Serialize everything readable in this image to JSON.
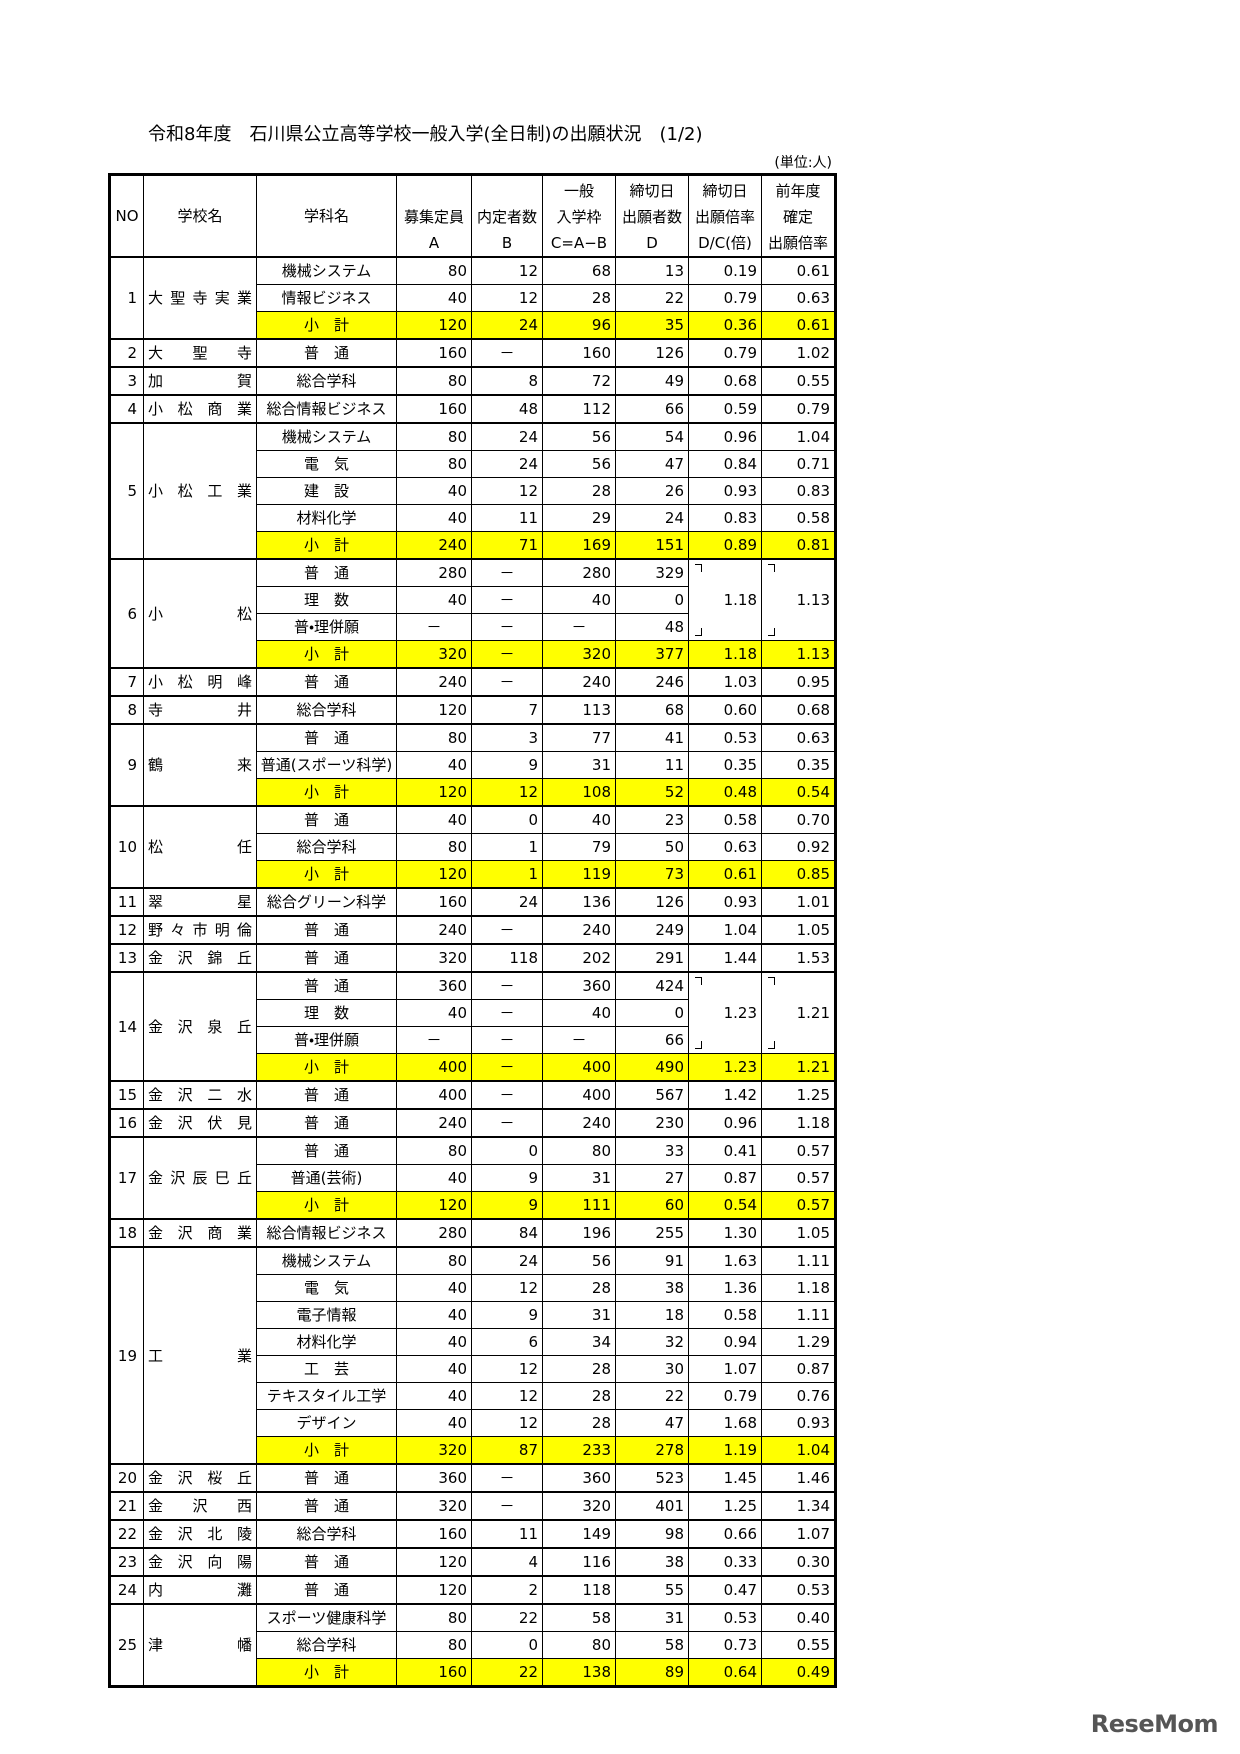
{
  "title": "令和8年度　石川県公立高等学校一般入学(全日制)の出願状況　(1/2)",
  "unit": "(単位:人)",
  "header": [
    [
      "NO"
    ],
    [
      "学校名"
    ],
    [
      "学科名"
    ],
    [
      "募集定員",
      "A"
    ],
    [
      "内定者数",
      "B"
    ],
    [
      "一般",
      "入学枠",
      "C=A−B"
    ],
    [
      "締切日",
      "出願者数",
      "D"
    ],
    [
      "締切日",
      "出願倍率",
      "D/C(倍)"
    ],
    [
      "前年度",
      "確定",
      "出願倍率"
    ]
  ],
  "schools": [
    {
      "no": "1",
      "name": "大聖寺実業",
      "rows": [
        [
          "機械システム",
          "80",
          "12",
          "68",
          "13",
          "0.19",
          "0.61"
        ],
        [
          "情報ビジネス",
          "40",
          "12",
          "28",
          "22",
          "0.79",
          "0.63"
        ]
      ],
      "subtotal": [
        "小　計",
        "120",
        "24",
        "96",
        "35",
        "0.36",
        "0.61"
      ]
    },
    {
      "no": "2",
      "name": "大聖寺",
      "rows": [
        [
          "普　通",
          "160",
          "－",
          "160",
          "126",
          "0.79",
          "1.02"
        ]
      ]
    },
    {
      "no": "3",
      "name": "加賀",
      "rows": [
        [
          "総合学科",
          "80",
          "8",
          "72",
          "49",
          "0.68",
          "0.55"
        ]
      ]
    },
    {
      "no": "4",
      "name": "小松商業",
      "rows": [
        [
          "総合情報ビジネス",
          "160",
          "48",
          "112",
          "66",
          "0.59",
          "0.79"
        ]
      ]
    },
    {
      "no": "5",
      "name": "小松工業",
      "rows": [
        [
          "機械システム",
          "80",
          "24",
          "56",
          "54",
          "0.96",
          "1.04"
        ],
        [
          "電　気",
          "80",
          "24",
          "56",
          "47",
          "0.84",
          "0.71"
        ],
        [
          "建　設",
          "40",
          "12",
          "28",
          "26",
          "0.93",
          "0.83"
        ],
        [
          "材料化学",
          "40",
          "11",
          "29",
          "24",
          "0.83",
          "0.58"
        ]
      ],
      "subtotal": [
        "小　計",
        "240",
        "71",
        "169",
        "151",
        "0.89",
        "0.81"
      ]
    },
    {
      "no": "6",
      "name": "小松",
      "rows": [
        [
          "普　通",
          "280",
          "－",
          "280",
          "329"
        ],
        [
          "理　数",
          "40",
          "－",
          "40",
          "0"
        ],
        [
          "普・理併願",
          "－",
          "－",
          "－",
          "48"
        ]
      ],
      "combined": [
        "1.18",
        "1.13"
      ],
      "subtotal": [
        "小　計",
        "320",
        "－",
        "320",
        "377",
        "1.18",
        "1.13"
      ]
    },
    {
      "no": "7",
      "name": "小松明峰",
      "rows": [
        [
          "普　通",
          "240",
          "－",
          "240",
          "246",
          "1.03",
          "0.95"
        ]
      ]
    },
    {
      "no": "8",
      "name": "寺井",
      "rows": [
        [
          "総合学科",
          "120",
          "7",
          "113",
          "68",
          "0.60",
          "0.68"
        ]
      ]
    },
    {
      "no": "9",
      "name": "鶴来",
      "rows": [
        [
          "普　通",
          "80",
          "3",
          "77",
          "41",
          "0.53",
          "0.63"
        ],
        [
          "普通(スポーツ科学)",
          "40",
          "9",
          "31",
          "11",
          "0.35",
          "0.35"
        ]
      ],
      "subtotal": [
        "小　計",
        "120",
        "12",
        "108",
        "52",
        "0.48",
        "0.54"
      ]
    },
    {
      "no": "10",
      "name": "松任",
      "rows": [
        [
          "普　通",
          "40",
          "0",
          "40",
          "23",
          "0.58",
          "0.70"
        ],
        [
          "総合学科",
          "80",
          "1",
          "79",
          "50",
          "0.63",
          "0.92"
        ]
      ],
      "subtotal": [
        "小　計",
        "120",
        "1",
        "119",
        "73",
        "0.61",
        "0.85"
      ]
    },
    {
      "no": "11",
      "name": "翠星",
      "rows": [
        [
          "総合グリーン科学",
          "160",
          "24",
          "136",
          "126",
          "0.93",
          "1.01"
        ]
      ]
    },
    {
      "no": "12",
      "name": "野々市明倫",
      "rows": [
        [
          "普　通",
          "240",
          "－",
          "240",
          "249",
          "1.04",
          "1.05"
        ]
      ]
    },
    {
      "no": "13",
      "name": "金沢錦丘",
      "rows": [
        [
          "普　通",
          "320",
          "118",
          "202",
          "291",
          "1.44",
          "1.53"
        ]
      ]
    },
    {
      "no": "14",
      "name": "金沢泉丘",
      "rows": [
        [
          "普　通",
          "360",
          "－",
          "360",
          "424"
        ],
        [
          "理　数",
          "40",
          "－",
          "40",
          "0"
        ],
        [
          "普・理併願",
          "－",
          "－",
          "－",
          "66"
        ]
      ],
      "combined": [
        "1.23",
        "1.21"
      ],
      "subtotal": [
        "小　計",
        "400",
        "－",
        "400",
        "490",
        "1.23",
        "1.21"
      ]
    },
    {
      "no": "15",
      "name": "金沢二水",
      "rows": [
        [
          "普　通",
          "400",
          "－",
          "400",
          "567",
          "1.42",
          "1.25"
        ]
      ]
    },
    {
      "no": "16",
      "name": "金沢伏見",
      "rows": [
        [
          "普　通",
          "240",
          "－",
          "240",
          "230",
          "0.96",
          "1.18"
        ]
      ]
    },
    {
      "no": "17",
      "name": "金沢辰巳丘",
      "rows": [
        [
          "普　通",
          "80",
          "0",
          "80",
          "33",
          "0.41",
          "0.57"
        ],
        [
          "普通(芸術)",
          "40",
          "9",
          "31",
          "27",
          "0.87",
          "0.57"
        ]
      ],
      "subtotal": [
        "小　計",
        "120",
        "9",
        "111",
        "60",
        "0.54",
        "0.57"
      ]
    },
    {
      "no": "18",
      "name": "金沢商業",
      "rows": [
        [
          "総合情報ビジネス",
          "280",
          "84",
          "196",
          "255",
          "1.30",
          "1.05"
        ]
      ]
    },
    {
      "no": "19",
      "name": "工業",
      "rows": [
        [
          "機械システム",
          "80",
          "24",
          "56",
          "91",
          "1.63",
          "1.11"
        ],
        [
          "電　気",
          "40",
          "12",
          "28",
          "38",
          "1.36",
          "1.18"
        ],
        [
          "電子情報",
          "40",
          "9",
          "31",
          "18",
          "0.58",
          "1.11"
        ],
        [
          "材料化学",
          "40",
          "6",
          "34",
          "32",
          "0.94",
          "1.29"
        ],
        [
          "工　芸",
          "40",
          "12",
          "28",
          "30",
          "1.07",
          "0.87"
        ],
        [
          "テキスタイル工学",
          "40",
          "12",
          "28",
          "22",
          "0.79",
          "0.76"
        ],
        [
          "デザイン",
          "40",
          "12",
          "28",
          "47",
          "1.68",
          "0.93"
        ]
      ],
      "subtotal": [
        "小　計",
        "320",
        "87",
        "233",
        "278",
        "1.19",
        "1.04"
      ]
    },
    {
      "no": "20",
      "name": "金沢桜丘",
      "rows": [
        [
          "普　通",
          "360",
          "－",
          "360",
          "523",
          "1.45",
          "1.46"
        ]
      ]
    },
    {
      "no": "21",
      "name": "金沢西",
      "rows": [
        [
          "普　通",
          "320",
          "－",
          "320",
          "401",
          "1.25",
          "1.34"
        ]
      ]
    },
    {
      "no": "22",
      "name": "金沢北陵",
      "rows": [
        [
          "総合学科",
          "160",
          "11",
          "149",
          "98",
          "0.66",
          "1.07"
        ]
      ]
    },
    {
      "no": "23",
      "name": "金沢向陽",
      "rows": [
        [
          "普　通",
          "120",
          "4",
          "116",
          "38",
          "0.33",
          "0.30"
        ]
      ]
    },
    {
      "no": "24",
      "name": "内灘",
      "rows": [
        [
          "普　通",
          "120",
          "2",
          "118",
          "55",
          "0.47",
          "0.53"
        ]
      ]
    },
    {
      "no": "25",
      "name": "津幡",
      "rows": [
        [
          "スポーツ健康科学",
          "80",
          "22",
          "58",
          "31",
          "0.53",
          "0.40"
        ],
        [
          "総合学科",
          "80",
          "0",
          "80",
          "58",
          "0.73",
          "0.55"
        ]
      ],
      "subtotal": [
        "小　計",
        "160",
        "22",
        "138",
        "89",
        "0.64",
        "0.49"
      ]
    }
  ],
  "watermark": "ReseMom"
}
